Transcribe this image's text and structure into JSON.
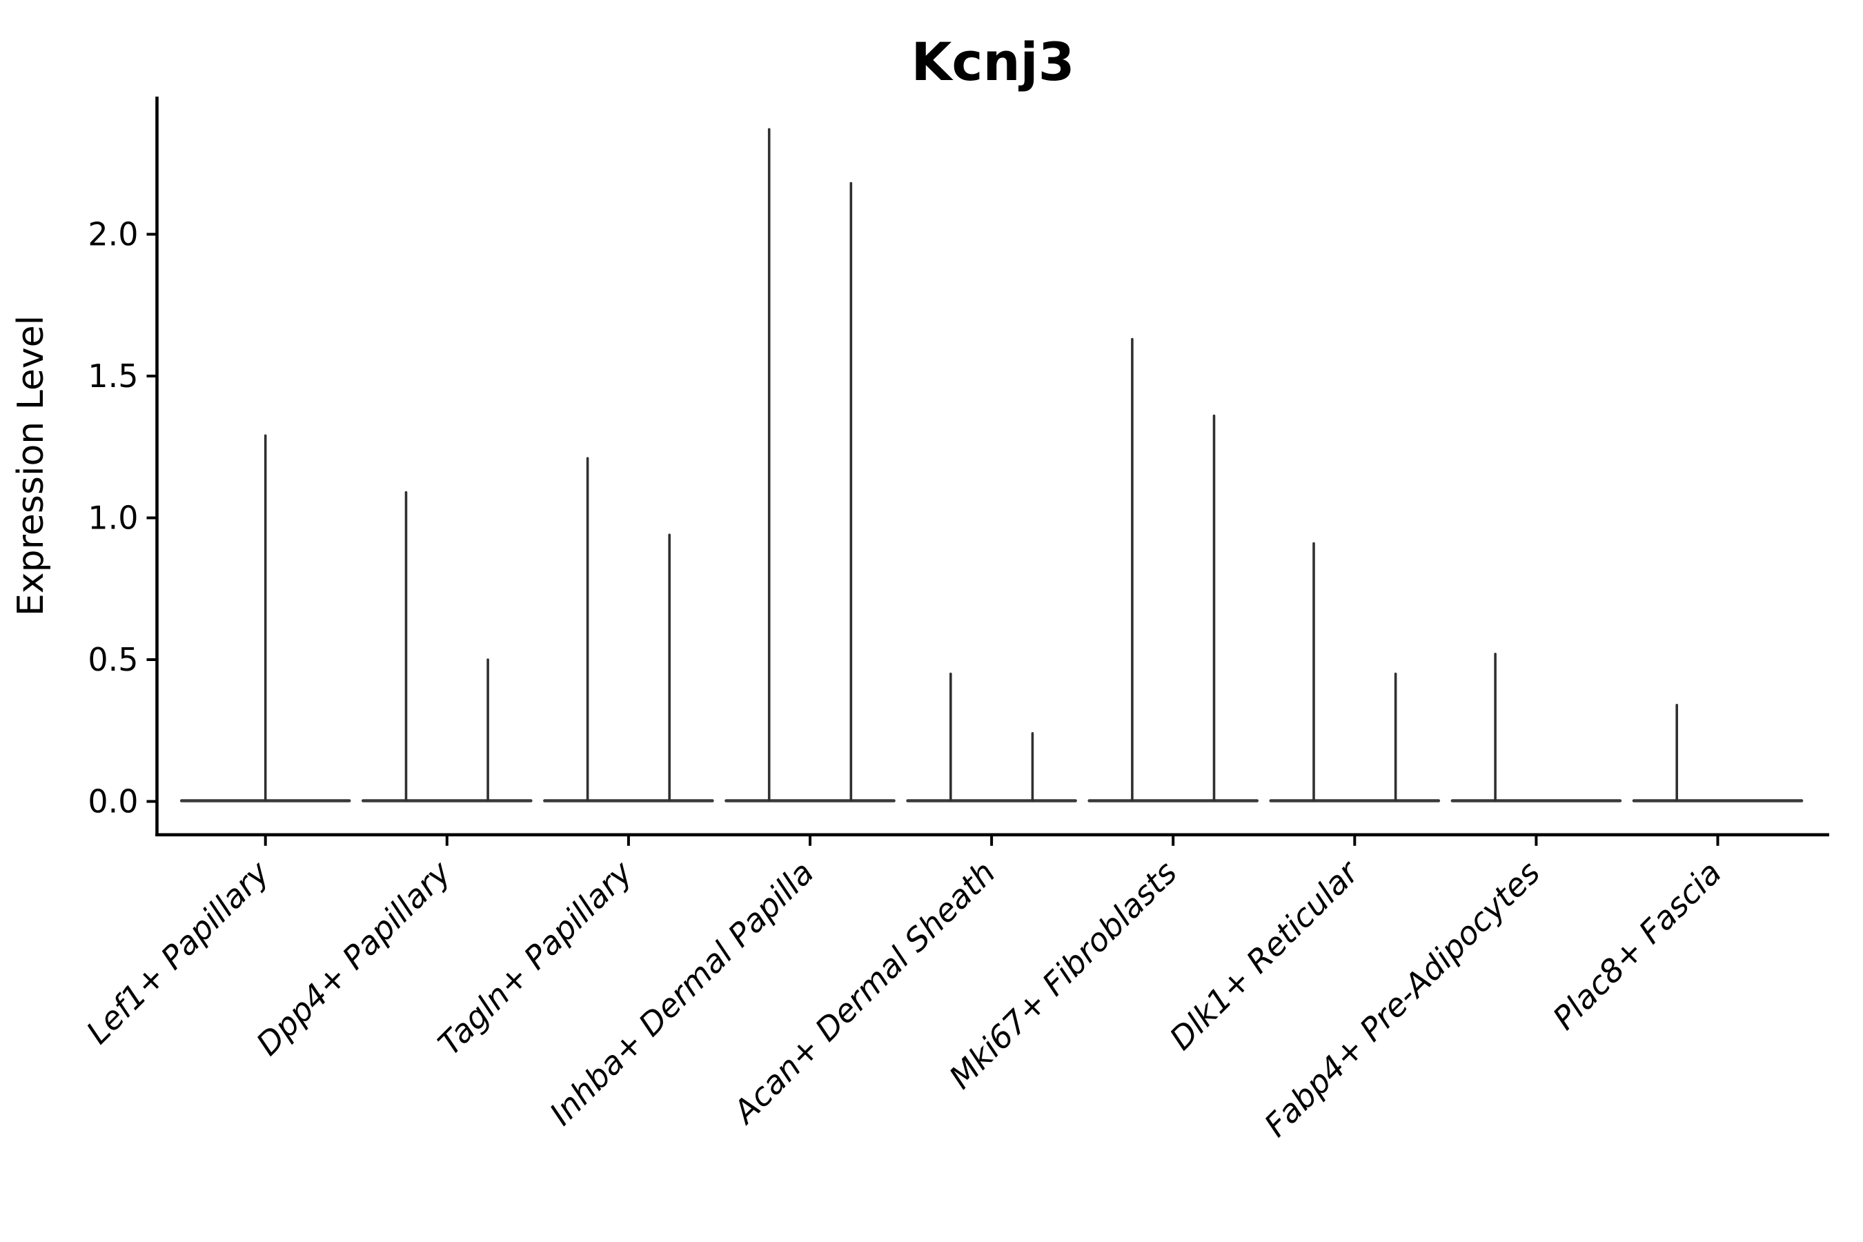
{
  "title": "Kcnj3",
  "chart_data": {
    "type": "violin",
    "title": "Kcnj3",
    "xlabel": "",
    "ylabel": "Expression Level",
    "grid": false,
    "legend": "none",
    "y_ticks": [
      {
        "value": 0.0,
        "label": "0.0"
      },
      {
        "value": 0.5,
        "label": "0.5"
      },
      {
        "value": 1.0,
        "label": "1.0"
      },
      {
        "value": 1.5,
        "label": "1.5"
      },
      {
        "value": 2.0,
        "label": "2.0"
      }
    ],
    "ylim": [
      -0.115,
      2.49
    ],
    "categories": [
      "Lef1+ Papillary",
      "Dpp4+ Papillary",
      "Tagln+ Papillary",
      "Inhba+ Dermal Papilla",
      "Acan+ Dermal Sheath",
      "Mki67+ Fibroblasts",
      "Dlk1+ Reticular",
      "Fabp4+ Pre-Adipocytes",
      "Plac8+ Fascia"
    ],
    "violins": [
      {
        "category": "Lef1+ Papillary",
        "spikes": [
          {
            "position": "center",
            "max": 1.29
          }
        ]
      },
      {
        "category": "Dpp4+ Papillary",
        "spikes": [
          {
            "position": "left",
            "max": 1.09
          },
          {
            "position": "right",
            "max": 0.5
          }
        ]
      },
      {
        "category": "Tagln+ Papillary",
        "spikes": [
          {
            "position": "left",
            "max": 1.21
          },
          {
            "position": "right",
            "max": 0.94
          }
        ]
      },
      {
        "category": "Inhba+ Dermal Papilla",
        "spikes": [
          {
            "position": "left",
            "max": 2.37
          },
          {
            "position": "right",
            "max": 2.18
          }
        ]
      },
      {
        "category": "Acan+ Dermal Sheath",
        "spikes": [
          {
            "position": "left",
            "max": 0.45
          },
          {
            "position": "right",
            "max": 0.24
          }
        ]
      },
      {
        "category": "Mki67+ Fibroblasts",
        "spikes": [
          {
            "position": "left",
            "max": 1.63
          },
          {
            "position": "right",
            "max": 1.36
          }
        ]
      },
      {
        "category": "Dlk1+ Reticular",
        "spikes": [
          {
            "position": "left",
            "max": 0.91
          },
          {
            "position": "right",
            "max": 0.45
          }
        ]
      },
      {
        "category": "Fabp4+ Pre-Adipocytes",
        "spikes": [
          {
            "position": "left",
            "max": 0.52
          }
        ]
      },
      {
        "category": "Plac8+ Fascia",
        "spikes": [
          {
            "position": "left",
            "max": 0.34
          }
        ]
      }
    ],
    "colors": {
      "violin_line": "#303030",
      "baseline": "#3a3a3a",
      "axis": "#000000",
      "text": "#000000",
      "background": "#ffffff"
    }
  }
}
